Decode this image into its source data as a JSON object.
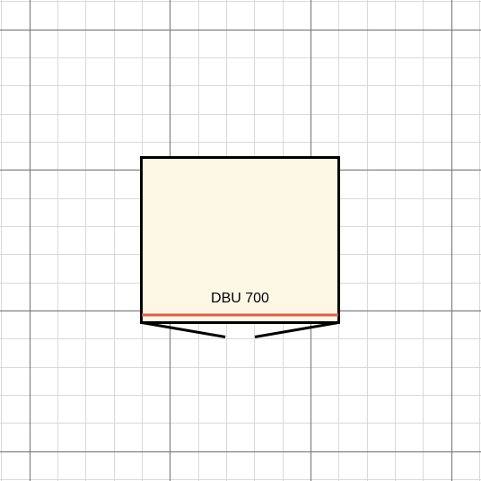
{
  "cabinet": {
    "label": "DBU 700",
    "fill_color": "#fdf7e6",
    "outline_color": "#000000",
    "front_edge_color": "#e85a44"
  },
  "grid": {
    "minor_color": "#d9d9d9",
    "major_color": "#7f7f7f",
    "background": "#ffffff"
  }
}
